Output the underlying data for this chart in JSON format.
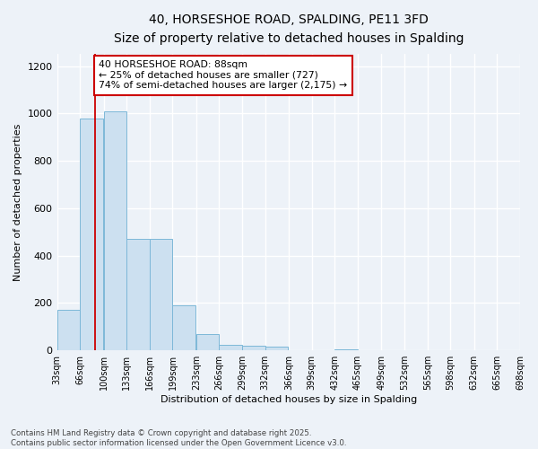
{
  "title_line1": "40, HORSESHOE ROAD, SPALDING, PE11 3FD",
  "title_line2": "Size of property relative to detached houses in Spalding",
  "xlabel": "Distribution of detached houses by size in Spalding",
  "ylabel": "Number of detached properties",
  "bar_edges": [
    33,
    66,
    100,
    133,
    166,
    199,
    233,
    266,
    299,
    332,
    366,
    399,
    432,
    465,
    499,
    532,
    565,
    598,
    632,
    665,
    698
  ],
  "bar_heights": [
    170,
    980,
    1010,
    470,
    470,
    190,
    70,
    25,
    20,
    15,
    0,
    0,
    5,
    0,
    0,
    0,
    0,
    0,
    0,
    0
  ],
  "bar_color": "#cce0f0",
  "bar_edge_color": "#7db8d8",
  "property_size": 88,
  "annotation_text": "40 HORSESHOE ROAD: 88sqm\n← 25% of detached houses are smaller (727)\n74% of semi-detached houses are larger (2,175) →",
  "annotation_box_color": "#ffffff",
  "annotation_box_edge": "#cc0000",
  "vline_color": "#cc0000",
  "ylim": [
    0,
    1250
  ],
  "yticks": [
    0,
    200,
    400,
    600,
    800,
    1000,
    1200
  ],
  "bg_color": "#edf2f8",
  "grid_color": "#ffffff",
  "footnote": "Contains HM Land Registry data © Crown copyright and database right 2025.\nContains public sector information licensed under the Open Government Licence v3.0.",
  "tick_labels": [
    "33sqm",
    "66sqm",
    "100sqm",
    "133sqm",
    "166sqm",
    "199sqm",
    "233sqm",
    "266sqm",
    "299sqm",
    "332sqm",
    "366sqm",
    "399sqm",
    "432sqm",
    "465sqm",
    "499sqm",
    "532sqm",
    "565sqm",
    "598sqm",
    "632sqm",
    "665sqm",
    "698sqm"
  ]
}
